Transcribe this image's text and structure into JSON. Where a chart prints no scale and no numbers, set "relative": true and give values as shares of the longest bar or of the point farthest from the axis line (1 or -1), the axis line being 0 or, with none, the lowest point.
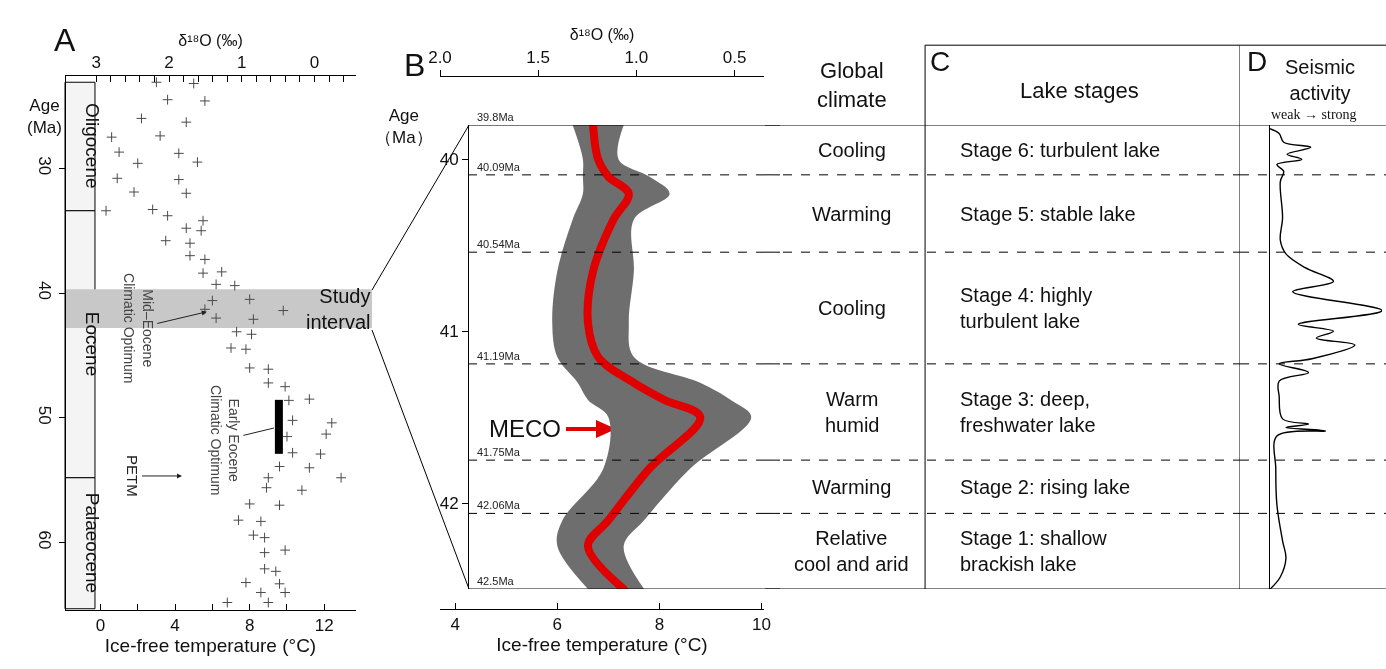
{
  "chart_data": [
    {
      "type": "scatter",
      "title": "A",
      "xlabel": "Ice-free temperature (°C)",
      "x2label": "δ¹⁸O (‰)",
      "ylabel": "Age\n(Ma)",
      "marker": "cross",
      "x": [
        3.0,
        5.0,
        3.6,
        5.6,
        2.2,
        4.6,
        0.6,
        3.2,
        1.0,
        4.2,
        2.0,
        5.2,
        0.9,
        4.2,
        1.8,
        4.6,
        0.3,
        2.8,
        3.6,
        5.5,
        4.6,
        5.4,
        3.5,
        4.8,
        4.8,
        5.6,
        5.5,
        6.5,
        6.2,
        7.2,
        6.0,
        8.0,
        5.6,
        9.8,
        6.2,
        8.2,
        7.3,
        8.1,
        7.0,
        7.8,
        8.0,
        9.0,
        9.0,
        9.9,
        10.1,
        11.2,
        10.3,
        12.4,
        10.0,
        12.1,
        10.3,
        11.8,
        9.6,
        11.2,
        9.0,
        12.9,
        8.9,
        10.8,
        8.0,
        9.6,
        7.4,
        8.6,
        8.2,
        8.8,
        8.8,
        9.9,
        8.8,
        9.4,
        7.8,
        9.6,
        8.6,
        9.9,
        6.8,
        9.0
      ],
      "series": [
        {
          "color": "#4a4a4a",
          "values": [
            23.1,
            23.2,
            24.5,
            24.6,
            26.0,
            26.3,
            27.5,
            27.4,
            28.7,
            28.8,
            29.6,
            29.5,
            30.8,
            30.9,
            31.9,
            32.0,
            33.4,
            33.3,
            33.8,
            34.2,
            34.8,
            35.0,
            35.8,
            36.0,
            37.0,
            37.3,
            38.4,
            38.3,
            39.3,
            39.4,
            40.6,
            40.5,
            41.3,
            41.4,
            42.0,
            42.1,
            43.1,
            43.3,
            44.4,
            44.5,
            46.0,
            46.1,
            47.2,
            47.5,
            48.6,
            48.5,
            50.2,
            50.4,
            51.5,
            51.3,
            52.8,
            52.9,
            53.9,
            54.0,
            54.8,
            54.8,
            55.6,
            55.8,
            56.9,
            57.0,
            58.2,
            58.3,
            59.4,
            59.6,
            60.8,
            60.6,
            62.1,
            62.3,
            63.2,
            63.3,
            64.0,
            64.0,
            64.8,
            64.8
          ]
        }
      ],
      "xlim": [
        -1.9,
        13.7
      ],
      "xticks": [
        0,
        {
          "value": 2,
          "label": null
        },
        4,
        {
          "value": 6,
          "label": null
        },
        8,
        {
          "value": 10,
          "label": null
        },
        12
      ],
      "x2lim": [
        3.43,
        -0.57
      ],
      "x2ticks": [
        3,
        {
          "value": 2.8,
          "label": null
        },
        {
          "value": 2.6,
          "label": null
        },
        {
          "value": 2.4,
          "label": null
        },
        {
          "value": 2.2,
          "label": null
        },
        2,
        {
          "value": 1.8,
          "label": null
        },
        {
          "value": 1.6,
          "label": null
        },
        {
          "value": 1.4,
          "label": null
        },
        {
          "value": 1.2,
          "label": null
        },
        1,
        {
          "value": 0.8,
          "label": null
        },
        {
          "value": 0.6,
          "label": null
        },
        {
          "value": 0.4,
          "label": null
        },
        {
          "value": 0.2,
          "label": null
        },
        0,
        {
          "value": -0.2,
          "label": null
        },
        {
          "value": -0.4,
          "label": null
        }
      ],
      "ylim": [
        65.4,
        22.6
      ],
      "yticks": [
        30,
        40,
        50,
        60
      ],
      "bands": [
        {
          "axis": "y",
          "from": 23.1,
          "to": 33.4,
          "label": "Oligocene",
          "color": "#f4f4f4"
        },
        {
          "axis": "y",
          "from": 33.4,
          "to": 54.8,
          "label": "Eocene",
          "color": "#f4f4f4"
        },
        {
          "axis": "y",
          "from": 54.8,
          "to": 65.3,
          "label": "Palaeocene",
          "color": "#f4f4f4"
        },
        {
          "axis": "y",
          "from": 39.7,
          "to": 42.8,
          "label": "Study\ninterval",
          "color": "#c8c8c8"
        }
      ],
      "annotations": [
        {
          "text": "Mid–Eocene\nClimatic Optimum",
          "x": 5.7,
          "y": 41.5
        },
        "Early Eocene\nClimatic Optimum",
        "PETM"
      ]
    },
    {
      "type": "line",
      "orientation": "horizontal",
      "title": "B",
      "xlabel": "Ice-free temperature (°C)",
      "x2label": "δ¹⁸O (‰)",
      "ylabel": "Age\n（Ma）",
      "x": [
        39.8,
        40.0,
        40.1,
        40.2,
        40.35,
        40.65,
        40.95,
        41.15,
        41.3,
        41.4,
        41.5,
        41.8,
        42.1,
        42.25,
        42.5
      ],
      "series": [
        {
          "color": "#e00000",
          "values": [
            6.7,
            6.8,
            7.0,
            7.4,
            7.1,
            6.7,
            6.6,
            6.8,
            7.5,
            8.1,
            8.8,
            7.8,
            7.0,
            6.6,
            7.3
          ],
          "lower": [
            6.3,
            6.5,
            6.5,
            6.5,
            6.3,
            6.0,
            5.9,
            6.0,
            6.4,
            6.6,
            7.0,
            6.9,
            6.1,
            6.0,
            6.6
          ],
          "upper": [
            7.3,
            7.2,
            7.8,
            8.2,
            7.5,
            7.5,
            7.4,
            7.5,
            8.8,
            9.4,
            9.8,
            8.6,
            7.7,
            7.3,
            7.7
          ]
        }
      ],
      "xlim": [
        3.7,
        10.05
      ],
      "xticks": [
        4,
        6,
        8,
        10
      ],
      "x2lim": [
        2.0,
        0.35
      ],
      "x2ticks": [
        {
          "value": 2,
          "label": "2.0"
        },
        1.5,
        {
          "value": 1,
          "label": "1.0"
        },
        0.5
      ],
      "ylim": [
        42.5,
        39.8
      ],
      "yticks": [
        40,
        41,
        42
      ],
      "ref_lines": [
        {
          "axis": "y",
          "value": 39.8,
          "label": "39.8Ma",
          "line_style": "solid"
        },
        {
          "axis": "y",
          "value": 40.09,
          "label": "40.09Ma",
          "line_style": "dashed"
        },
        {
          "axis": "y",
          "value": 40.54,
          "label": "40.54Ma",
          "line_style": "dashed"
        },
        {
          "axis": "y",
          "value": 41.19,
          "label": "41.19Ma",
          "line_style": "dashed"
        },
        {
          "axis": "y",
          "value": 41.75,
          "label": "41.75Ma",
          "line_style": "dashed"
        },
        {
          "axis": "y",
          "value": 42.06,
          "label": "42.06Ma",
          "line_style": "dashed"
        },
        {
          "axis": "y",
          "value": 42.5,
          "label": "42.5Ma",
          "line_style": "solid"
        }
      ],
      "annotations": [
        "MECO"
      ]
    },
    {
      "type": "other",
      "title": "C",
      "categories": [
        "Global\nclimate",
        "Lake stages"
      ],
      "cell_labels": [
        [
          "Cooling",
          "Stage 6: turbulent lake"
        ],
        [
          "Warming",
          "Stage 5: stable lake"
        ],
        [
          "Cooling",
          "Stage 4: highly\nturbulent lake"
        ],
        [
          "Warm\nhumid",
          "Stage 3: deep,\nfreshwater lake"
        ],
        [
          "Warming",
          "Stage 2: rising lake"
        ],
        [
          "Relative\ncool and arid",
          "Stage 1: shallow\nbrackish lake"
        ]
      ]
    },
    {
      "type": "line",
      "orientation": "horizontal",
      "relative": true,
      "title": "D",
      "subtitle": "Seismic\nactivity",
      "xlabel": "weak → strong",
      "x": [
        39.82,
        39.85,
        39.9,
        39.93,
        39.97,
        40.0,
        40.03,
        40.07,
        40.13,
        40.34,
        40.47,
        40.55,
        40.63,
        40.71,
        40.77,
        40.88,
        40.96,
        41.0,
        41.04,
        41.08,
        41.16,
        41.19,
        41.24,
        41.29,
        41.38,
        41.51,
        41.54,
        41.56,
        41.58,
        41.61,
        41.8,
        42.01,
        42.22,
        42.32,
        42.43,
        42.5
      ],
      "series": [
        {
          "color": "#000000",
          "values": [
            0,
            0.09,
            0.13,
            0.37,
            0.16,
            0.29,
            0.07,
            0.13,
            0.1,
            0.12,
            0.1,
            0.15,
            0.32,
            0.57,
            0.21,
            1,
            0.26,
            0.57,
            0.42,
            0.76,
            0.38,
            0.09,
            0.35,
            0.09,
            0.09,
            0.12,
            0.35,
            0.15,
            0.5,
            0.07,
            0.06,
            0.07,
            0.12,
            0.15,
            0.1,
            0.01
          ]
        }
      ],
      "ylim": [
        42.5,
        39.8
      ],
      "ref_lines": [
        {
          "axis": "y",
          "value": 39.8,
          "line_style": "solid"
        },
        {
          "axis": "y",
          "value": 40.09,
          "line_style": "dashed"
        },
        {
          "axis": "y",
          "value": 40.54,
          "line_style": "dashed"
        },
        {
          "axis": "y",
          "value": 41.19,
          "line_style": "dashed"
        },
        {
          "axis": "y",
          "value": 41.75,
          "line_style": "dashed"
        },
        {
          "axis": "y",
          "value": 42.06,
          "line_style": "dashed"
        },
        {
          "axis": "y",
          "value": 42.5,
          "line_style": "solid"
        }
      ]
    }
  ]
}
